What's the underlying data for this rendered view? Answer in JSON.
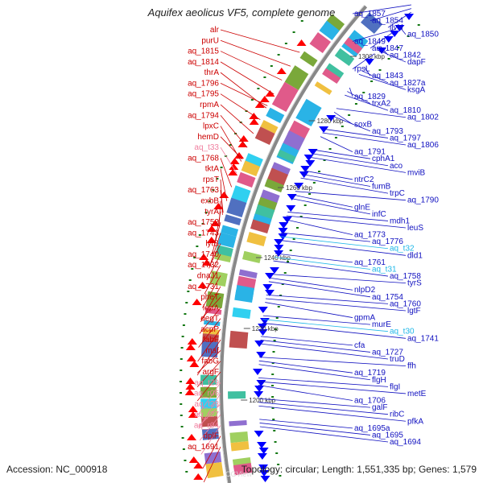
{
  "title": "Aquifex aeolicus VF5, complete genome",
  "accession_text": "Accession: NC_000918",
  "summary_text": "Topology: circular; Length: 1,551,335 bp; Genes: 1,579",
  "watermark": "CGView",
  "colors": {
    "left_label": "#cc0000",
    "left_label_rna": "#f080a0",
    "right_label": "#1010c0",
    "right_label_rna": "#20b8e8",
    "backbone": "#888888",
    "forward_gene": "#ff0000",
    "reverse_gene": "#0000ff",
    "gc_skew": "#117711"
  },
  "kbp_ticks": [
    "1300 kbp",
    "1280 kbp",
    "1260 kbp",
    "1240 kbp",
    "1220 kbp",
    "1200 kbp"
  ],
  "left_labels": [
    {
      "text": "alr",
      "rna": false
    },
    {
      "text": "purU",
      "rna": false
    },
    {
      "text": "aq_1815",
      "rna": false
    },
    {
      "text": "aq_1814",
      "rna": false
    },
    {
      "text": "thrA",
      "rna": false
    },
    {
      "text": "aq_1796",
      "rna": false
    },
    {
      "text": "aq_1795",
      "rna": false
    },
    {
      "text": "rpmA",
      "rna": false
    },
    {
      "text": "aq_1794",
      "rna": false
    },
    {
      "text": "lpxC",
      "rna": false
    },
    {
      "text": "hemD",
      "rna": false
    },
    {
      "text": "aq_t33",
      "rna": true
    },
    {
      "text": "aq_1768",
      "rna": false
    },
    {
      "text": "tktA",
      "rna": false
    },
    {
      "text": "rpsT",
      "rna": false
    },
    {
      "text": "aq_1763",
      "rna": false
    },
    {
      "text": "exbB",
      "rna": false
    },
    {
      "text": "tyrA",
      "rna": false
    },
    {
      "text": "aq_1752",
      "rna": false
    },
    {
      "text": "aq_1743",
      "rna": false
    },
    {
      "text": "lytB",
      "rna": false
    },
    {
      "text": "aq_1740",
      "rna": false
    },
    {
      "text": "aq_1732",
      "rna": false
    },
    {
      "text": "dnaJ1",
      "rna": false
    },
    {
      "text": "aq_1731",
      "rna": false
    },
    {
      "text": "pheT",
      "rna": false
    },
    {
      "text": "lepA",
      "rna": false
    },
    {
      "text": "degT",
      "rna": false
    },
    {
      "text": "acpP",
      "rna": false
    },
    {
      "text": "fabF",
      "rna": false
    },
    {
      "text": "maf",
      "rna": false
    },
    {
      "text": "fabG",
      "rna": false
    },
    {
      "text": "argF",
      "rna": false
    },
    {
      "text": "aq_t29",
      "rna": true
    },
    {
      "text": "aq_r06",
      "rna": true
    },
    {
      "text": "aq_t28",
      "rna": true
    },
    {
      "text": "aq_t27",
      "rna": true
    },
    {
      "text": "aq_r04",
      "rna": true
    },
    {
      "text": "dplF",
      "rna": false
    },
    {
      "text": "aq_1691",
      "rna": false
    }
  ],
  "right_labels": [
    {
      "text": "aq_1857",
      "rna": false
    },
    {
      "text": "aq_1854",
      "rna": false
    },
    {
      "text": "ilvH",
      "rna": false
    },
    {
      "text": "aq_1850",
      "rna": false
    },
    {
      "text": "aq_1849",
      "rna": false
    },
    {
      "text": "aq_1847",
      "rna": false
    },
    {
      "text": "aq_1842",
      "rna": false
    },
    {
      "text": "dapF",
      "rna": false
    },
    {
      "text": "rpsL",
      "rna": false
    },
    {
      "text": "aq_1843",
      "rna": false
    },
    {
      "text": "aq_1827a",
      "rna": false
    },
    {
      "text": "ksgA",
      "rna": false
    },
    {
      "text": "aq_1829",
      "rna": false
    },
    {
      "text": "trxA2",
      "rna": false
    },
    {
      "text": "aq_1810",
      "rna": false
    },
    {
      "text": "aq_1802",
      "rna": false
    },
    {
      "text": "soxB",
      "rna": false
    },
    {
      "text": "aq_1793",
      "rna": false
    },
    {
      "text": "aq_1797",
      "rna": false
    },
    {
      "text": "aq_1806",
      "rna": false
    },
    {
      "text": "aq_1791",
      "rna": false
    },
    {
      "text": "cphA1",
      "rna": false
    },
    {
      "text": "aco",
      "rna": false
    },
    {
      "text": "mviB",
      "rna": false
    },
    {
      "text": "ntrC2",
      "rna": false
    },
    {
      "text": "fumB",
      "rna": false
    },
    {
      "text": "trpC",
      "rna": false
    },
    {
      "text": "aq_1790",
      "rna": false
    },
    {
      "text": "glnE",
      "rna": false
    },
    {
      "text": "infC",
      "rna": false
    },
    {
      "text": "mdh1",
      "rna": false
    },
    {
      "text": "leuS",
      "rna": false
    },
    {
      "text": "aq_1773",
      "rna": false
    },
    {
      "text": "aq_1776",
      "rna": false
    },
    {
      "text": "aq_t32",
      "rna": true
    },
    {
      "text": "dld1",
      "rna": false
    },
    {
      "text": "aq_1761",
      "rna": false
    },
    {
      "text": "aq_t31",
      "rna": true
    },
    {
      "text": "aq_1758",
      "rna": false
    },
    {
      "text": "tyrS",
      "rna": false
    },
    {
      "text": "nlpD2",
      "rna": false
    },
    {
      "text": "aq_1754",
      "rna": false
    },
    {
      "text": "aq_1760",
      "rna": false
    },
    {
      "text": "lgtF",
      "rna": false
    },
    {
      "text": "gpmA",
      "rna": false
    },
    {
      "text": "murE",
      "rna": false
    },
    {
      "text": "aq_t30",
      "rna": true
    },
    {
      "text": "aq_1741",
      "rna": false
    },
    {
      "text": "cfa",
      "rna": false
    },
    {
      "text": "aq_1727",
      "rna": false
    },
    {
      "text": "truD",
      "rna": false
    },
    {
      "text": "ffh",
      "rna": false
    },
    {
      "text": "aq_1719",
      "rna": false
    },
    {
      "text": "flgH",
      "rna": false
    },
    {
      "text": "flgI",
      "rna": false
    },
    {
      "text": "metE",
      "rna": false
    },
    {
      "text": "aq_1706",
      "rna": false
    },
    {
      "text": "galF",
      "rna": false
    },
    {
      "text": "ribC",
      "rna": false
    },
    {
      "text": "pfkA",
      "rna": false
    },
    {
      "text": "aq_1695a",
      "rna": false
    },
    {
      "text": "aq_1695",
      "rna": false
    },
    {
      "text": "aq_1694",
      "rna": false
    }
  ]
}
